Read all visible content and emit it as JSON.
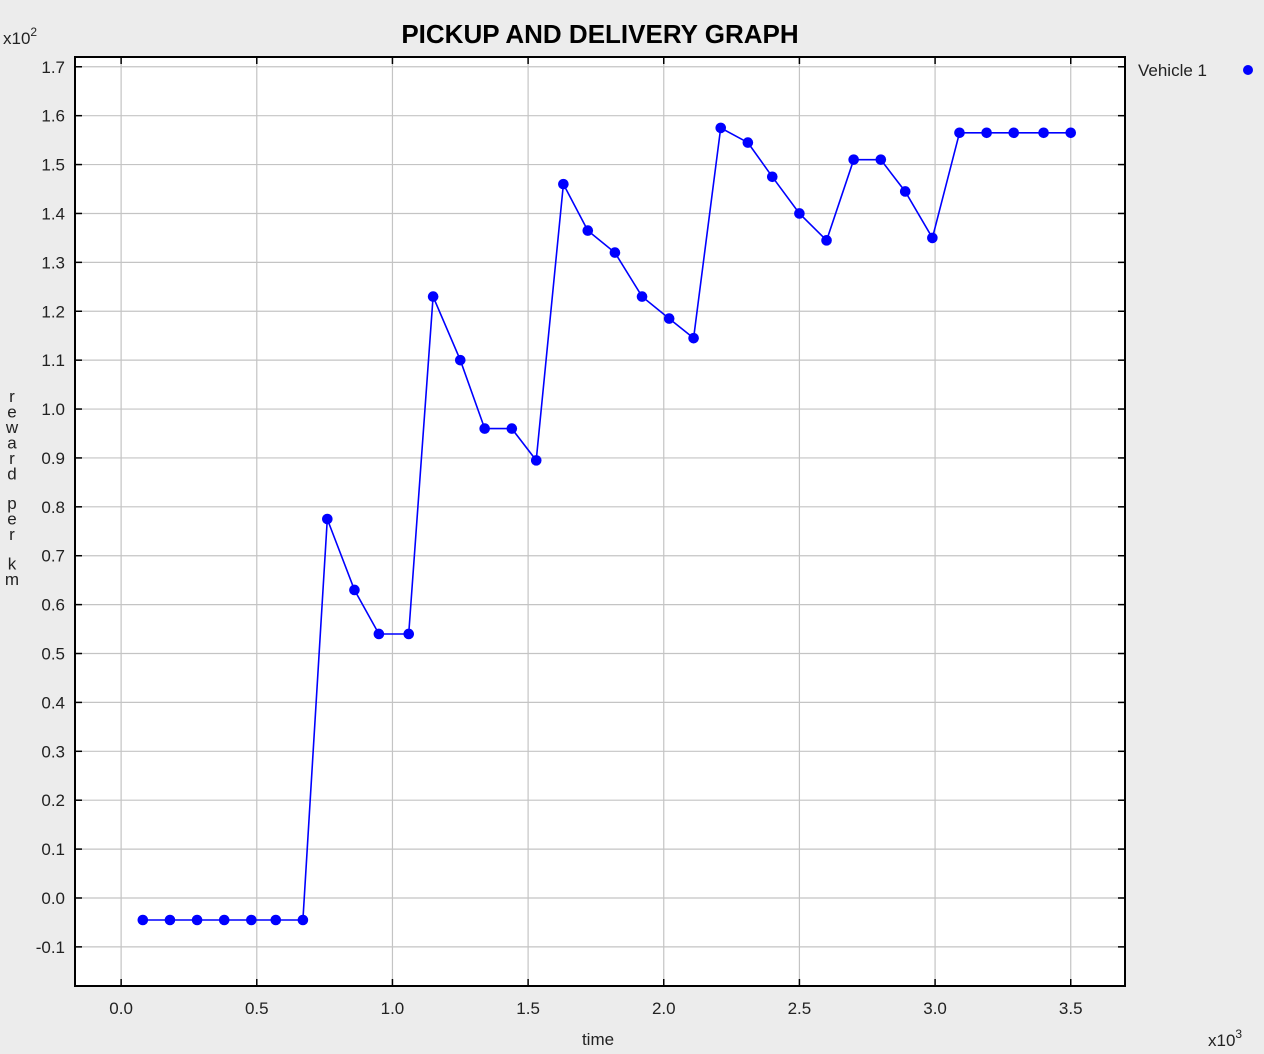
{
  "chart_data": {
    "type": "line",
    "title": "PICKUP AND DELIVERY GRAPH",
    "xlabel": "time",
    "ylabel": "reward per km",
    "x_multiplier": "x10",
    "x_multiplier_exp": "3",
    "y_multiplier": "x10",
    "y_multiplier_exp": "2",
    "xlim": [
      -0.17,
      3.7
    ],
    "ylim": [
      -0.18,
      1.72
    ],
    "xticks": [
      "0.0",
      "0.5",
      "1.0",
      "1.5",
      "2.0",
      "2.5",
      "3.0",
      "3.5"
    ],
    "yticks": [
      "-0.1",
      "0.0",
      "0.1",
      "0.2",
      "0.3",
      "0.4",
      "0.5",
      "0.6",
      "0.7",
      "0.8",
      "0.9",
      "1.0",
      "1.1",
      "1.2",
      "1.3",
      "1.4",
      "1.5",
      "1.6",
      "1.7"
    ],
    "grid": true,
    "legend_position": "top-right",
    "series": [
      {
        "name": "Vehicle 1",
        "color": "#0000ff",
        "x": [
          0.08,
          0.18,
          0.28,
          0.38,
          0.48,
          0.57,
          0.67,
          0.76,
          0.86,
          0.95,
          1.06,
          1.15,
          1.25,
          1.34,
          1.44,
          1.53,
          1.63,
          1.72,
          1.82,
          1.92,
          2.02,
          2.11,
          2.21,
          2.31,
          2.4,
          2.5,
          2.6,
          2.7,
          2.8,
          2.89,
          2.99,
          3.09,
          3.19,
          3.29,
          3.4,
          3.5
        ],
        "y": [
          -0.045,
          -0.045,
          -0.045,
          -0.045,
          -0.045,
          -0.045,
          -0.045,
          0.775,
          0.63,
          0.54,
          0.54,
          1.23,
          1.1,
          0.96,
          0.96,
          0.895,
          1.46,
          1.365,
          1.32,
          1.23,
          1.185,
          1.145,
          1.575,
          1.545,
          1.475,
          1.4,
          1.345,
          1.51,
          1.51,
          1.445,
          1.35,
          1.565,
          1.565,
          1.565,
          1.565,
          1.565
        ]
      }
    ]
  }
}
